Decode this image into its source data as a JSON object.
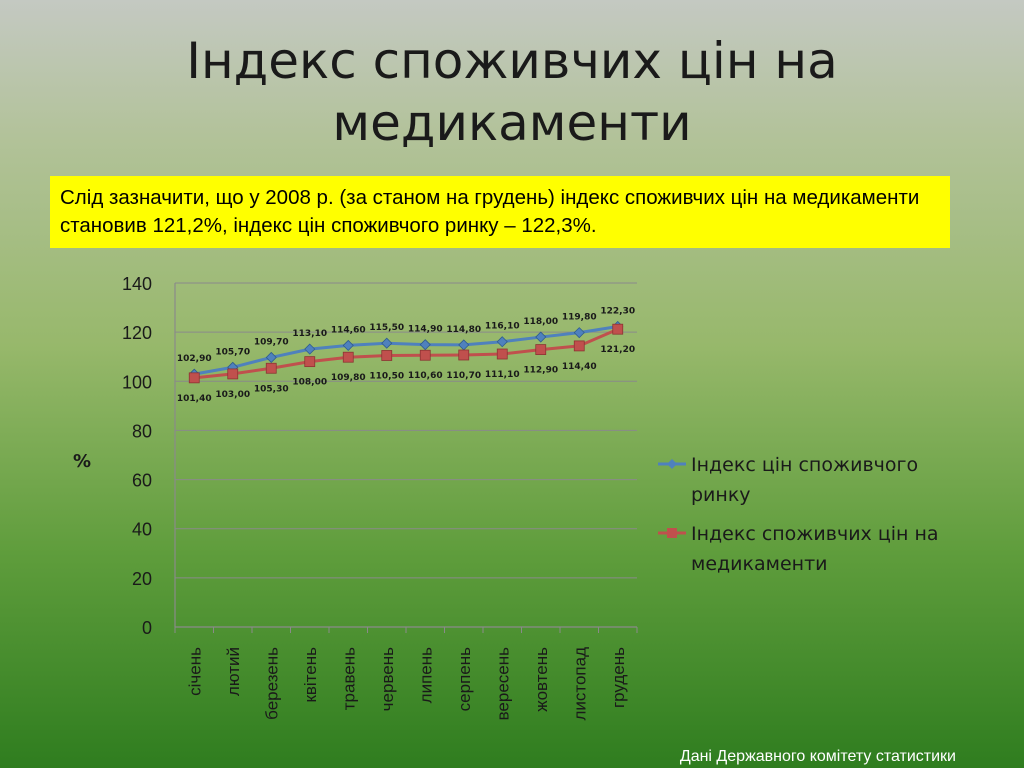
{
  "slide": {
    "title_line1": "Індекс споживчих цін на",
    "title_line2": "медикаменти",
    "note": "Слід зазначити, що у 2008 р. (за станом на грудень) індекс споживчих цін на медикаменти становив 121,2%, індекс цін споживчого ринку – 122,3%.",
    "source": "Дані Державного комітету статистики"
  },
  "chart_data": {
    "type": "line",
    "title": "",
    "xlabel": "",
    "ylabel": "%",
    "ylim": [
      0,
      140
    ],
    "yticks": [
      0,
      20,
      40,
      60,
      80,
      100,
      120,
      140
    ],
    "categories": [
      "січень",
      "лютий",
      "березень",
      "квітень",
      "травень",
      "червень",
      "липень",
      "серпень",
      "вересень",
      "жовтень",
      "листопад",
      "грудень"
    ],
    "legend_position": "right",
    "series": [
      {
        "name": "Індекс цін споживчого ринку",
        "name_lines": [
          "Індекс цін споживчого",
          "ринку"
        ],
        "color": "#4f81bd",
        "marker": "diamond",
        "values": [
          102.9,
          105.7,
          109.7,
          113.1,
          114.6,
          115.5,
          114.9,
          114.8,
          116.1,
          118.0,
          119.8,
          122.3
        ],
        "labels": [
          "102,90",
          "105,70",
          "109,70",
          "113,10",
          "114,60",
          "115,50",
          "114,90",
          "114,80",
          "116,10",
          "118,00",
          "119,80",
          "122,30"
        ]
      },
      {
        "name": "Індекс споживчих цін на медикаменти",
        "name_lines": [
          "Індекс споживчих цін на",
          "медикаменти"
        ],
        "color": "#c0504d",
        "marker": "square",
        "values": [
          101.4,
          103.0,
          105.3,
          108.0,
          109.8,
          110.5,
          110.6,
          110.7,
          111.1,
          112.9,
          114.4,
          121.2
        ],
        "labels": [
          "101,40",
          "103,00",
          "105,30",
          "108,00",
          "109,80",
          "110,50",
          "110,60",
          "110,70",
          "111,10",
          "112,90",
          "114,40",
          "121,20"
        ]
      }
    ]
  }
}
